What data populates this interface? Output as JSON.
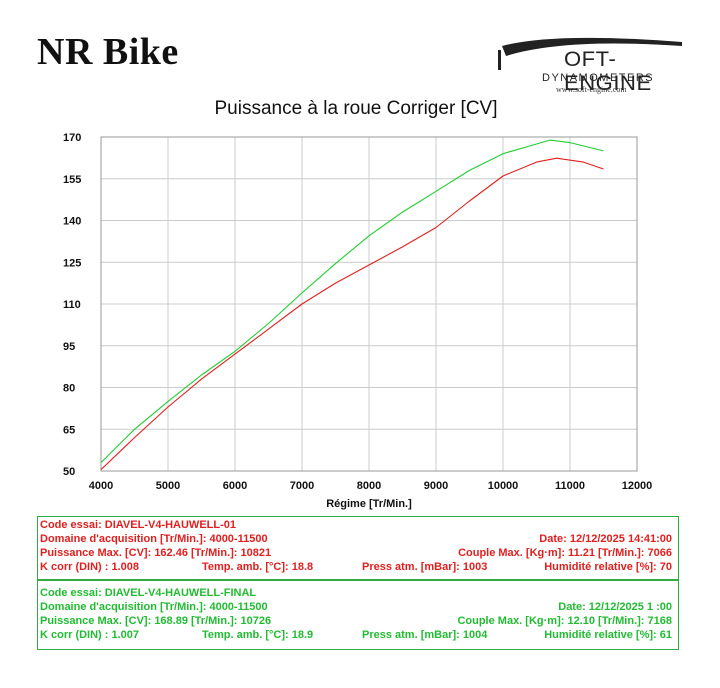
{
  "header": {
    "brand": "NR Bike",
    "logo_main": "OFT-ENGINE",
    "logo_sub": "DYNAMOMETERS",
    "logo_url": "www.soft-engine.com"
  },
  "colors": {
    "run1": "#e02020",
    "run2": "#22cc33",
    "grid": "#cccccc",
    "panel_border": "#33aa44"
  },
  "chart_data": {
    "type": "line",
    "title": "Puissance à la roue Corriger [CV]",
    "xlabel": "Régime [Tr/Min.]",
    "ylabel": "",
    "xlim": [
      4000,
      12000
    ],
    "ylim": [
      50,
      170
    ],
    "x_ticks": [
      "4000",
      "5000",
      "6000",
      "7000",
      "8000",
      "9000",
      "10000",
      "11000",
      "12000"
    ],
    "y_ticks": [
      "50",
      "65",
      "80",
      "95",
      "110",
      "125",
      "140",
      "155",
      "170"
    ],
    "grid": true,
    "series": [
      {
        "name": "DIAVEL-V4-HAUWELL-01",
        "color": "#e02020",
        "x": [
          4000,
          4500,
          5000,
          5500,
          6000,
          6500,
          7000,
          7500,
          8000,
          8500,
          9000,
          9500,
          10000,
          10500,
          10800,
          11200,
          11500
        ],
        "y": [
          50.5,
          62,
          73,
          83,
          92,
          101,
          110,
          117.5,
          124,
          130.5,
          137.5,
          147,
          156,
          161,
          162.4,
          161,
          158.5
        ]
      },
      {
        "name": "DIAVEL-V4-HAUWELL-FINAL",
        "color": "#22cc33",
        "x": [
          4000,
          4500,
          5000,
          5500,
          6000,
          6500,
          7000,
          7500,
          8000,
          8500,
          9000,
          9500,
          10000,
          10500,
          10700,
          11000,
          11500
        ],
        "y": [
          53,
          65,
          75,
          84.5,
          93,
          103,
          114,
          124.5,
          134.5,
          143,
          150.5,
          158,
          164,
          167.5,
          168.9,
          168,
          165
        ]
      }
    ]
  },
  "run1": {
    "code": "Code essai: DIAVEL-V4-HAUWELL-01",
    "domaine": "Domaine d'acquisition [Tr/Min.]: 4000-11500",
    "date": "Date: 12/12/2025   14:41:00",
    "puissance": "Puissance Max. [CV]: 162.46   [Tr/Min.]: 10821",
    "couple": "Couple Max. [Kg·m]: 11.21   [Tr/Min.]: 7066",
    "kcorr": "K corr  (DIN) : 1.008",
    "temp": "Temp. amb. [°C]: 18.8",
    "press": "Press atm. [mBar]: 1003",
    "humid": "Humidité relative [%]: 70"
  },
  "run2": {
    "code": "Code essai: DIAVEL-V4-HAUWELL-FINAL",
    "domaine": "Domaine d'acquisition [Tr/Min.]: 4000-11500",
    "date": "Date: 12/12/2025   1 :00",
    "puissance": "Puissance Max. [CV]: 168.89   [Tr/Min.]: 10726",
    "couple": "Couple Max. [Kg·m]: 12.10   [Tr/Min.]: 7168",
    "kcorr": "K corr  (DIN) : 1.007",
    "temp": "Temp. amb. [°C]: 18.9",
    "press": "Press atm. [mBar]: 1004",
    "humid": "Humidité relative [%]: 61"
  }
}
